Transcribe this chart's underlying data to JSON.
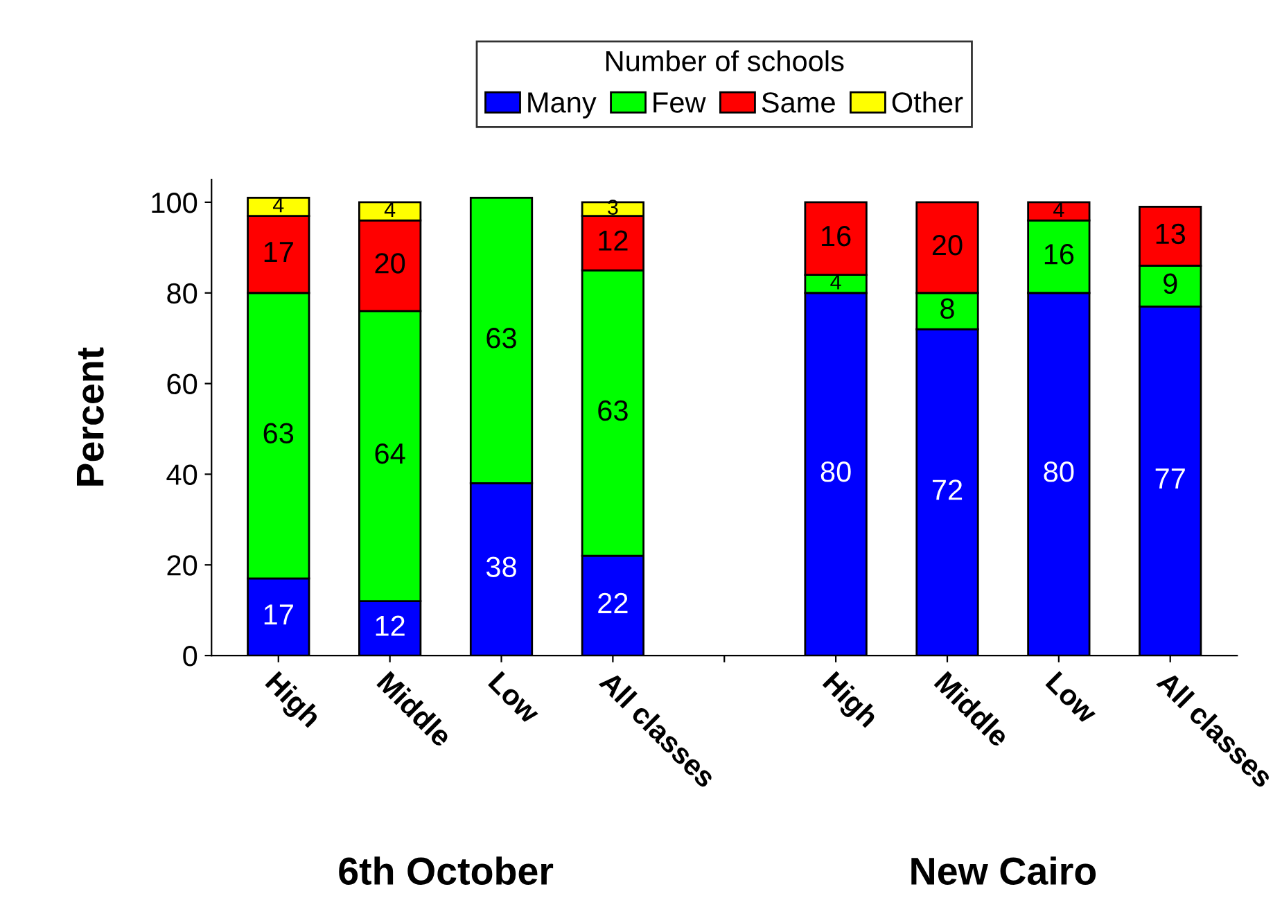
{
  "chart_data": {
    "type": "bar",
    "stacked": true,
    "ylabel": "Percent",
    "legend_title": "Number of schools",
    "legend": "top",
    "categories": [
      "High",
      "Middle",
      "Low",
      "All classes",
      null,
      "High",
      "Middle",
      "Low",
      "All classes"
    ],
    "series": [
      {
        "name": "Many",
        "color": "#0000ff",
        "values": [
          17,
          12,
          38,
          22,
          null,
          80,
          72,
          80,
          77
        ],
        "value_labels": [
          "17",
          "12",
          "38",
          "22",
          null,
          "80",
          "72",
          "80",
          "77"
        ]
      },
      {
        "name": "Few",
        "color": "#00ff00",
        "values": [
          63,
          64,
          63,
          63,
          null,
          4,
          8,
          16,
          9
        ],
        "value_labels": [
          "63",
          "64",
          "63",
          "63",
          null,
          "4",
          "8",
          "16",
          "9"
        ]
      },
      {
        "name": "Same",
        "color": "#ff0000",
        "values": [
          17,
          20,
          null,
          12,
          null,
          16,
          20,
          4,
          13
        ],
        "value_labels": [
          "17",
          "20",
          null,
          "12",
          null,
          "16",
          "20",
          "4",
          "13"
        ]
      },
      {
        "name": "Other",
        "color": "#ffff00",
        "values": [
          4,
          4,
          null,
          3,
          null,
          null,
          null,
          null,
          null
        ],
        "value_labels": [
          "4",
          "4",
          null,
          "3",
          null,
          null,
          null,
          null,
          null
        ]
      }
    ],
    "ylim": [
      0,
      105
    ],
    "yticks": [
      0,
      20,
      40,
      60,
      80,
      100
    ],
    "grid": false,
    "annotations": [
      "6th October",
      "New Cairo"
    ]
  }
}
